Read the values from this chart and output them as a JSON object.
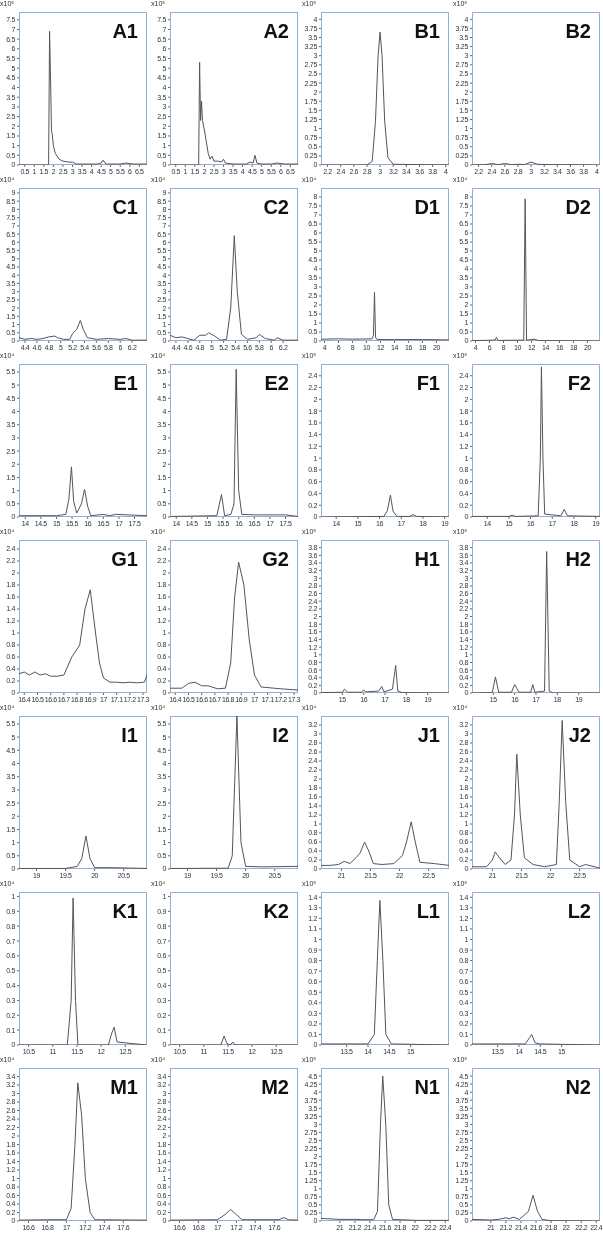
{
  "chart_data": [
    {
      "type": "line",
      "title": "A1",
      "ylabel": "x10⁵",
      "color": "#555555",
      "xlim": [
        0.2,
        6.9
      ],
      "xticks": [
        0.5,
        1,
        1.5,
        2,
        2.5,
        3,
        3.5,
        4,
        4.5,
        5,
        5.5,
        6,
        6.5
      ],
      "ylim": [
        0,
        7.9
      ],
      "yticks": [
        0,
        0.5,
        1,
        1.5,
        2,
        2.5,
        3,
        3.5,
        4,
        4.5,
        5,
        5.5,
        6,
        6.5,
        7,
        7.5
      ],
      "x": [
        0.2,
        1.7,
        1.75,
        1.8,
        1.85,
        1.9,
        1.95,
        2.0,
        2.1,
        2.3,
        2.5,
        2.8,
        3.0,
        3.2,
        3.5,
        4.0,
        4.3,
        4.5,
        4.6,
        4.75,
        5.0,
        5.5,
        5.8,
        6.2,
        6.9
      ],
      "values": [
        0,
        0,
        0.05,
        6.9,
        4.5,
        1.8,
        1.5,
        1.0,
        0.6,
        0.3,
        0.2,
        0.15,
        0.15,
        0.05,
        0.05,
        0.05,
        0.05,
        0.1,
        0.25,
        0.05,
        0.05,
        0.05,
        0.1,
        0.05,
        0.05
      ]
    },
    {
      "type": "line",
      "title": "A2",
      "ylabel": "x10⁵",
      "color": "#555555",
      "xlim": [
        0.2,
        6.9
      ],
      "xticks": [
        0.5,
        1,
        1.5,
        2,
        2.5,
        3,
        3.5,
        4,
        4.5,
        5,
        5.5,
        6,
        6.5
      ],
      "ylim": [
        0,
        7.9
      ],
      "yticks": [
        0,
        0.5,
        1,
        1.5,
        2,
        2.5,
        3,
        3.5,
        4,
        4.5,
        5,
        5.5,
        6,
        6.5,
        7,
        7.5
      ],
      "x": [
        0.2,
        1.7,
        1.75,
        1.8,
        1.85,
        1.9,
        2.0,
        2.1,
        2.2,
        2.3,
        2.4,
        2.5,
        2.7,
        2.9,
        3.0,
        3.1,
        3.5,
        4.2,
        4.4,
        4.55,
        4.65,
        4.75,
        5.0,
        5.5,
        5.8,
        6.2,
        6.9
      ],
      "values": [
        0,
        0,
        5.3,
        2.3,
        3.3,
        2.3,
        1.8,
        1.2,
        0.6,
        0.3,
        0.45,
        0.2,
        0.2,
        0.15,
        0.3,
        0.1,
        0.05,
        0.05,
        0.15,
        0.1,
        0.5,
        0.1,
        0.05,
        0.05,
        0.1,
        0.05,
        0.05
      ]
    },
    {
      "type": "line",
      "title": "B1",
      "ylabel": "x10⁵",
      "color": "#555555",
      "xlim": [
        2.1,
        4.05
      ],
      "xticks": [
        2.2,
        2.4,
        2.6,
        2.8,
        3,
        3.2,
        3.4,
        3.6,
        3.8,
        4
      ],
      "ylim": [
        0,
        4.2
      ],
      "yticks": [
        0,
        0.25,
        0.5,
        0.75,
        1,
        1.25,
        1.5,
        1.75,
        2,
        2.25,
        2.5,
        2.75,
        3,
        3.25,
        3.5,
        3.75,
        4
      ],
      "x": [
        2.1,
        2.8,
        2.88,
        2.93,
        2.97,
        3.0,
        3.03,
        3.07,
        3.12,
        3.2,
        4.05
      ],
      "values": [
        0,
        0,
        0.1,
        1.2,
        3.0,
        3.65,
        3.0,
        1.2,
        0.2,
        0.02,
        0
      ]
    },
    {
      "type": "line",
      "title": "B2",
      "ylabel": "x10⁵",
      "color": "#555555",
      "xlim": [
        2.1,
        4.05
      ],
      "xticks": [
        2.2,
        2.4,
        2.6,
        2.8,
        3,
        3.2,
        3.4,
        3.6,
        3.8,
        4
      ],
      "ylim": [
        0,
        4.2
      ],
      "yticks": [
        0,
        0.25,
        0.5,
        0.75,
        1,
        1.25,
        1.5,
        1.75,
        2,
        2.25,
        2.5,
        2.75,
        3,
        3.25,
        3.5,
        3.75,
        4
      ],
      "x": [
        2.1,
        2.3,
        2.4,
        2.5,
        2.6,
        2.7,
        2.8,
        2.9,
        3.0,
        3.1,
        3.3,
        4.05
      ],
      "values": [
        0,
        0.01,
        0.04,
        0.01,
        0.04,
        0.01,
        0.02,
        0.01,
        0.08,
        0.02,
        0.01,
        0
      ]
    },
    {
      "type": "line",
      "title": "C1",
      "ylabel": "x10⁴",
      "color": "#555555",
      "xlim": [
        4.3,
        6.45
      ],
      "xticks": [
        4.4,
        4.6,
        4.8,
        5,
        5.2,
        5.4,
        5.6,
        5.8,
        6,
        6.2
      ],
      "ylim": [
        0,
        9.3
      ],
      "yticks": [
        0,
        0.5,
        1,
        1.5,
        2,
        2.5,
        3,
        3.5,
        4,
        4.5,
        5,
        5.5,
        6,
        6.5,
        7,
        7.5,
        8,
        8.5,
        9
      ],
      "x": [
        4.3,
        4.4,
        4.5,
        4.6,
        4.7,
        4.8,
        4.9,
        4.95,
        5.05,
        5.15,
        5.2,
        5.27,
        5.33,
        5.38,
        5.45,
        5.6,
        5.8,
        6.0,
        6.1,
        6.2,
        6.45
      ],
      "values": [
        0.2,
        0.1,
        0.15,
        0.1,
        0.15,
        0.25,
        0.3,
        0.2,
        0.1,
        0.1,
        0.45,
        0.7,
        1.25,
        0.7,
        0.2,
        0.1,
        0.15,
        0.1,
        0.15,
        0.05,
        0.05
      ]
    },
    {
      "type": "line",
      "title": "C2",
      "ylabel": "x10⁴",
      "color": "#555555",
      "xlim": [
        4.3,
        6.45
      ],
      "xticks": [
        4.4,
        4.6,
        4.8,
        5,
        5.2,
        5.4,
        5.6,
        5.8,
        6,
        6.2
      ],
      "ylim": [
        0,
        9.3
      ],
      "yticks": [
        0,
        0.5,
        1,
        1.5,
        2,
        2.5,
        3,
        3.5,
        4,
        4.5,
        5,
        5.5,
        6,
        6.5,
        7,
        7.5,
        8,
        8.5,
        9
      ],
      "x": [
        4.3,
        4.4,
        4.5,
        4.6,
        4.7,
        4.8,
        4.9,
        4.95,
        5.05,
        5.15,
        5.25,
        5.32,
        5.38,
        5.43,
        5.5,
        5.6,
        5.75,
        5.8,
        5.9,
        6.05,
        6.1,
        6.2,
        6.45
      ],
      "values": [
        0.35,
        0.2,
        0.25,
        0.15,
        0.05,
        0.35,
        0.35,
        0.5,
        0.3,
        0.05,
        0.1,
        2.0,
        6.4,
        3.0,
        0.4,
        0.1,
        0.2,
        0.4,
        0.15,
        0.05,
        0.2,
        0.05,
        0.05
      ]
    },
    {
      "type": "line",
      "title": "D1",
      "ylabel": "x10⁴",
      "color": "#555555",
      "xlim": [
        3.5,
        21.8
      ],
      "xticks": [
        4,
        6,
        8,
        10,
        12,
        14,
        16,
        18,
        20
      ],
      "ylim": [
        0,
        8.5
      ],
      "yticks": [
        0,
        0.5,
        1,
        1.5,
        2,
        2.5,
        3,
        3.5,
        4,
        4.5,
        5,
        5.5,
        6,
        6.5,
        7,
        7.5,
        8
      ],
      "x": [
        3.5,
        6,
        8,
        10.8,
        11.0,
        11.15,
        11.3,
        11.5,
        14,
        18,
        21.8
      ],
      "values": [
        0.1,
        0.12,
        0.1,
        0.12,
        0.3,
        2.7,
        0.2,
        0.08,
        0.08,
        0.08,
        0.06
      ]
    },
    {
      "type": "line",
      "title": "D2",
      "ylabel": "x10⁴",
      "color": "#555555",
      "xlim": [
        3.5,
        21.8
      ],
      "xticks": [
        4,
        6,
        8,
        10,
        12,
        14,
        16,
        18,
        20
      ],
      "ylim": [
        0,
        8.5
      ],
      "yticks": [
        0,
        0.5,
        1,
        1.5,
        2,
        2.5,
        3,
        3.5,
        4,
        4.5,
        5,
        5.5,
        6,
        6.5,
        7,
        7.5,
        8
      ],
      "x": [
        3.5,
        6.8,
        7.0,
        7.2,
        10.9,
        11.1,
        11.3,
        12.5,
        13,
        21.8
      ],
      "values": [
        0.02,
        0.05,
        0.2,
        0.03,
        0.05,
        7.9,
        0.05,
        0.1,
        0.02,
        0
      ]
    },
    {
      "type": "line",
      "title": "E1",
      "ylabel": "x10⁴",
      "color": "#555555",
      "xlim": [
        13.8,
        17.9
      ],
      "xticks": [
        14,
        14.5,
        15,
        15.5,
        16,
        16.5,
        17,
        17.5
      ],
      "ylim": [
        0,
        5.8
      ],
      "yticks": [
        0,
        0.5,
        1,
        1.5,
        2,
        2.5,
        3,
        3.5,
        4,
        4.5,
        5,
        5.5
      ],
      "x": [
        13.8,
        15.0,
        15.3,
        15.4,
        15.48,
        15.55,
        15.65,
        15.8,
        15.9,
        16.0,
        16.1,
        16.5,
        16.7,
        16.9,
        17.9
      ],
      "values": [
        0.05,
        0.05,
        0.1,
        0.7,
        1.9,
        0.6,
        0.15,
        0.5,
        1.05,
        0.4,
        0.05,
        0.1,
        0.05,
        0.1,
        0.05
      ]
    },
    {
      "type": "line",
      "title": "E2",
      "ylabel": "x10⁴",
      "color": "#555555",
      "xlim": [
        13.8,
        17.9
      ],
      "xticks": [
        14,
        14.5,
        15,
        15.5,
        16,
        16.5,
        17,
        17.5
      ],
      "ylim": [
        0,
        5.8
      ],
      "yticks": [
        0,
        0.5,
        1,
        1.5,
        2,
        2.5,
        3,
        3.5,
        4,
        4.5,
        5,
        5.5
      ],
      "x": [
        13.8,
        15.3,
        15.45,
        15.55,
        15.75,
        15.85,
        15.92,
        16.0,
        16.1,
        16.5,
        17.5,
        17.9
      ],
      "values": [
        0.02,
        0.05,
        0.85,
        0.05,
        0.1,
        0.5,
        5.6,
        1.0,
        0.1,
        0.08,
        0.08,
        0.02
      ]
    },
    {
      "type": "line",
      "title": "F1",
      "ylabel": "x10⁵",
      "color": "#555555",
      "xlim": [
        13.3,
        19.2
      ],
      "xticks": [
        14,
        15,
        16,
        17,
        18,
        19
      ],
      "ylim": [
        0,
        2.6
      ],
      "yticks": [
        0,
        0.2,
        0.4,
        0.6,
        0.8,
        1,
        1.2,
        1.4,
        1.6,
        1.8,
        2,
        2.2,
        2.4
      ],
      "x": [
        13.3,
        16.2,
        16.35,
        16.5,
        16.62,
        16.8,
        17.4,
        17.55,
        17.7,
        19.2
      ],
      "values": [
        0,
        0.01,
        0.1,
        0.37,
        0.1,
        0.01,
        0.01,
        0.04,
        0.01,
        0
      ]
    },
    {
      "type": "line",
      "title": "F2",
      "ylabel": "x10⁵",
      "color": "#555555",
      "xlim": [
        13.3,
        19.2
      ],
      "xticks": [
        14,
        15,
        16,
        17,
        18,
        19
      ],
      "ylim": [
        0,
        2.6
      ],
      "yticks": [
        0,
        0.2,
        0.4,
        0.6,
        0.8,
        1,
        1.2,
        1.4,
        1.6,
        1.8,
        2,
        2.2,
        2.4
      ],
      "x": [
        13.3,
        15.0,
        15.15,
        15.3,
        16.35,
        16.45,
        16.5,
        16.57,
        16.65,
        17.4,
        17.55,
        17.7,
        19.2
      ],
      "values": [
        0.01,
        0.01,
        0.03,
        0.01,
        0.02,
        1.0,
        2.55,
        1.0,
        0.05,
        0.02,
        0.13,
        0.02,
        0.01
      ]
    },
    {
      "type": "line",
      "title": "G1",
      "ylabel": "x10⁴",
      "color": "#555555",
      "xlim": [
        16.36,
        17.33
      ],
      "xticks": [
        16.4,
        16.5,
        16.6,
        16.7,
        16.8,
        16.9,
        17,
        17.1,
        17.2,
        17.3
      ],
      "ylim": [
        0,
        2.55
      ],
      "yticks": [
        0,
        0.2,
        0.4,
        0.6,
        0.8,
        1,
        1.2,
        1.4,
        1.6,
        1.8,
        2,
        2.2,
        2.4
      ],
      "x": [
        16.36,
        16.4,
        16.44,
        16.48,
        16.52,
        16.56,
        16.6,
        16.65,
        16.7,
        16.76,
        16.82,
        16.86,
        16.9,
        16.94,
        16.97,
        17.0,
        17.05,
        17.1,
        17.15,
        17.2,
        17.25,
        17.31,
        17.33
      ],
      "values": [
        0.32,
        0.35,
        0.3,
        0.35,
        0.3,
        0.32,
        0.28,
        0.28,
        0.3,
        0.6,
        0.8,
        1.4,
        1.72,
        1.0,
        0.5,
        0.25,
        0.18,
        0.18,
        0.17,
        0.18,
        0.17,
        0.18,
        0.3
      ]
    },
    {
      "type": "line",
      "title": "G2",
      "ylabel": "x10⁴",
      "color": "#555555",
      "xlim": [
        16.36,
        17.33
      ],
      "xticks": [
        16.4,
        16.5,
        16.6,
        16.7,
        16.8,
        16.9,
        17,
        17.1,
        17.2,
        17.3
      ],
      "ylim": [
        0,
        2.55
      ],
      "yticks": [
        0,
        0.2,
        0.4,
        0.6,
        0.8,
        1,
        1.2,
        1.4,
        1.6,
        1.8,
        2,
        2.2,
        2.4
      ],
      "x": [
        16.36,
        16.45,
        16.5,
        16.55,
        16.6,
        16.65,
        16.72,
        16.78,
        16.82,
        16.85,
        16.88,
        16.92,
        16.96,
        17.0,
        17.05,
        17.2,
        17.33
      ],
      "values": [
        0.08,
        0.08,
        0.16,
        0.18,
        0.12,
        0.12,
        0.07,
        0.08,
        0.5,
        1.6,
        2.18,
        1.8,
        0.9,
        0.3,
        0.1,
        0.07,
        0.05
      ]
    },
    {
      "type": "line",
      "title": "H1",
      "ylabel": "x10⁵",
      "color": "#555555",
      "xlim": [
        14,
        20
      ],
      "xticks": [
        15,
        16,
        17,
        18,
        19
      ],
      "ylim": [
        0,
        4.0
      ],
      "yticks": [
        0,
        0.2,
        0.4,
        0.6,
        0.8,
        1,
        1.2,
        1.4,
        1.6,
        1.8,
        2,
        2.2,
        2.4,
        2.6,
        2.8,
        3,
        3.2,
        3.4,
        3.6,
        3.8
      ],
      "x": [
        14,
        15.0,
        15.1,
        15.25,
        15.9,
        16.0,
        16.1,
        16.7,
        16.85,
        16.95,
        17.35,
        17.5,
        17.6,
        17.8,
        20
      ],
      "values": [
        0.01,
        0.02,
        0.1,
        0.02,
        0.02,
        0.08,
        0.03,
        0.05,
        0.17,
        0.03,
        0.1,
        0.72,
        0.05,
        0.01,
        0
      ]
    },
    {
      "type": "line",
      "title": "H2",
      "ylabel": "x10⁵",
      "color": "#555555",
      "xlim": [
        14,
        20
      ],
      "xticks": [
        15,
        16,
        17,
        18,
        19
      ],
      "ylim": [
        0,
        4.0
      ],
      "yticks": [
        0,
        0.2,
        0.4,
        0.6,
        0.8,
        1,
        1.2,
        1.4,
        1.6,
        1.8,
        2,
        2.2,
        2.4,
        2.6,
        2.8,
        3,
        3.2,
        3.4,
        3.6,
        3.8
      ],
      "x": [
        14,
        14.95,
        15.1,
        15.25,
        15.85,
        16.0,
        16.1,
        16.2,
        16.75,
        16.85,
        16.95,
        17.4,
        17.5,
        17.62,
        17.8,
        20
      ],
      "values": [
        0,
        0.01,
        0.42,
        0.02,
        0.02,
        0.22,
        0.12,
        0.02,
        0.02,
        0.22,
        0.02,
        0.05,
        3.7,
        0.05,
        0,
        0
      ]
    },
    {
      "type": "line",
      "title": "I1",
      "ylabel": "x10⁴",
      "color": "#555555",
      "xlim": [
        18.7,
        20.9
      ],
      "xticks": [
        19,
        19.5,
        20,
        20.5
      ],
      "ylim": [
        0,
        5.8
      ],
      "yticks": [
        0,
        0.5,
        1,
        1.5,
        2,
        2.5,
        3,
        3.5,
        4,
        4.5,
        5,
        5.5
      ],
      "x": [
        18.7,
        19.5,
        19.7,
        19.78,
        19.85,
        19.92,
        20.0,
        20.3,
        20.9
      ],
      "values": [
        0.02,
        0.02,
        0.1,
        0.4,
        1.25,
        0.4,
        0.05,
        0.05,
        0.02
      ]
    },
    {
      "type": "line",
      "title": "I2",
      "ylabel": "x10⁴",
      "color": "#555555",
      "xlim": [
        18.7,
        20.9
      ],
      "xticks": [
        19,
        19.5,
        20,
        20.5
      ],
      "ylim": [
        0,
        5.8
      ],
      "yticks": [
        0,
        0.5,
        1,
        1.5,
        2,
        2.5,
        3,
        3.5,
        4,
        4.5,
        5,
        5.5
      ],
      "x": [
        18.7,
        19.7,
        19.77,
        19.85,
        19.92,
        20.0,
        20.3,
        20.9
      ],
      "values": [
        0.02,
        0.03,
        0.5,
        5.8,
        1.0,
        0.1,
        0.08,
        0.1
      ]
    },
    {
      "type": "line",
      "title": "J1",
      "ylabel": "x10⁴",
      "color": "#555555",
      "xlim": [
        20.65,
        22.85
      ],
      "xticks": [
        21,
        21.5,
        22,
        22.5
      ],
      "ylim": [
        0,
        3.4
      ],
      "yticks": [
        0,
        0.2,
        0.4,
        0.6,
        0.8,
        1,
        1.2,
        1.4,
        1.6,
        1.8,
        2,
        2.2,
        2.4,
        2.6,
        2.8,
        3,
        3.2
      ],
      "x": [
        20.65,
        20.8,
        20.95,
        21.05,
        21.15,
        21.25,
        21.32,
        21.4,
        21.47,
        21.55,
        21.7,
        21.9,
        22.05,
        22.12,
        22.2,
        22.27,
        22.35,
        22.6,
        22.85
      ],
      "values": [
        0.08,
        0.08,
        0.1,
        0.17,
        0.12,
        0.25,
        0.35,
        0.6,
        0.4,
        0.12,
        0.1,
        0.12,
        0.3,
        0.6,
        1.05,
        0.6,
        0.15,
        0.12,
        0.08
      ]
    },
    {
      "type": "line",
      "title": "J2",
      "ylabel": "x10⁴",
      "color": "#555555",
      "xlim": [
        20.65,
        22.85
      ],
      "xticks": [
        21,
        21.5,
        22,
        22.5
      ],
      "ylim": [
        0,
        3.4
      ],
      "yticks": [
        0,
        0.2,
        0.4,
        0.6,
        0.8,
        1,
        1.2,
        1.4,
        1.6,
        1.8,
        2,
        2.2,
        2.4,
        2.6,
        2.8,
        3,
        3.2
      ],
      "x": [
        20.65,
        20.9,
        21.0,
        21.05,
        21.12,
        21.22,
        21.32,
        21.38,
        21.42,
        21.48,
        21.55,
        21.7,
        21.9,
        22.1,
        22.15,
        22.2,
        22.26,
        22.33,
        22.5,
        22.6,
        22.85
      ],
      "values": [
        0.05,
        0.05,
        0.2,
        0.38,
        0.25,
        0.1,
        0.2,
        1.2,
        2.55,
        1.2,
        0.25,
        0.1,
        0.05,
        0.1,
        1.5,
        3.3,
        1.5,
        0.2,
        0.05,
        0.1,
        0.02
      ]
    },
    {
      "type": "line",
      "title": "K1",
      "ylabel": "x10⁴",
      "color": "#555555",
      "xlim": [
        10.3,
        12.95
      ],
      "xticks": [
        10.5,
        11,
        11.5,
        12,
        12.5
      ],
      "ylim": [
        0,
        1.03
      ],
      "yticks": [
        0,
        0.1,
        0.2,
        0.3,
        0.4,
        0.5,
        0.6,
        0.7,
        0.8,
        0.9,
        1
      ],
      "x": [
        10.3,
        11.3,
        11.38,
        11.42,
        11.47,
        11.52,
        12.15,
        12.22,
        12.27,
        12.33,
        12.95
      ],
      "values": [
        0,
        0,
        0.3,
        0.99,
        0.3,
        0,
        0,
        0.08,
        0.12,
        0.02,
        0
      ]
    },
    {
      "type": "line",
      "title": "K2",
      "ylabel": "x10⁴",
      "color": "#555555",
      "xlim": [
        10.3,
        12.95
      ],
      "xticks": [
        10.5,
        11,
        11.5,
        12,
        12.5
      ],
      "ylim": [
        0,
        1.03
      ],
      "yticks": [
        0,
        0.1,
        0.2,
        0.3,
        0.4,
        0.5,
        0.6,
        0.7,
        0.8,
        0.9,
        1
      ],
      "x": [
        10.3,
        11.35,
        11.42,
        11.48,
        11.55,
        11.6,
        11.65,
        12.95
      ],
      "values": [
        0,
        0,
        0.06,
        0.01,
        0,
        0.02,
        0,
        0
      ]
    },
    {
      "type": "line",
      "title": "L1",
      "ylabel": "x10⁵",
      "color": "#555555",
      "xlim": [
        12.9,
        15.9
      ],
      "xticks": [
        13.5,
        14,
        14.5,
        15
      ],
      "ylim": [
        0,
        1.45
      ],
      "yticks": [
        0,
        0.1,
        0.2,
        0.3,
        0.4,
        0.5,
        0.6,
        0.7,
        0.8,
        0.9,
        1,
        1.1,
        1.2,
        1.3,
        1.4
      ],
      "x": [
        12.9,
        14.0,
        14.15,
        14.22,
        14.28,
        14.35,
        14.42,
        14.55,
        15.9
      ],
      "values": [
        0.01,
        0.01,
        0.1,
        0.8,
        1.37,
        0.8,
        0.1,
        0.01,
        0
      ]
    },
    {
      "type": "line",
      "title": "L2",
      "ylabel": "x10⁵",
      "color": "#555555",
      "xlim": [
        12.9,
        15.9
      ],
      "xticks": [
        13.5,
        14,
        14.5,
        15
      ],
      "ylim": [
        0,
        1.45
      ],
      "yticks": [
        0,
        0.1,
        0.2,
        0.3,
        0.4,
        0.5,
        0.6,
        0.7,
        0.8,
        0.9,
        1,
        1.1,
        1.2,
        1.3,
        1.4
      ],
      "x": [
        12.9,
        14.15,
        14.25,
        14.3,
        14.38,
        14.5,
        15.9
      ],
      "values": [
        0.01,
        0.01,
        0.07,
        0.1,
        0.02,
        0.01,
        0
      ]
    },
    {
      "type": "line",
      "title": "M1",
      "ylabel": "x10⁴",
      "color": "#555555",
      "xlim": [
        16.5,
        17.85
      ],
      "xticks": [
        16.6,
        16.8,
        17,
        17.2,
        17.4,
        17.6
      ],
      "ylim": [
        0,
        3.6
      ],
      "yticks": [
        0,
        0.2,
        0.4,
        0.6,
        0.8,
        1,
        1.2,
        1.4,
        1.6,
        1.8,
        2,
        2.2,
        2.4,
        2.6,
        2.8,
        3,
        3.2,
        3.4
      ],
      "x": [
        16.5,
        16.8,
        17.0,
        17.05,
        17.09,
        17.12,
        17.16,
        17.2,
        17.25,
        17.3,
        17.85
      ],
      "values": [
        0.02,
        0.03,
        0.03,
        0.3,
        1.8,
        3.25,
        2.5,
        1.0,
        0.2,
        0.03,
        0.02
      ]
    },
    {
      "type": "line",
      "title": "M2",
      "ylabel": "x10⁴",
      "color": "#555555",
      "xlim": [
        16.5,
        17.85
      ],
      "xticks": [
        16.6,
        16.8,
        17,
        17.2,
        17.4,
        17.6
      ],
      "ylim": [
        0,
        3.6
      ],
      "yticks": [
        0,
        0.2,
        0.4,
        0.6,
        0.8,
        1,
        1.2,
        1.4,
        1.6,
        1.8,
        2,
        2.2,
        2.4,
        2.6,
        2.8,
        3,
        3.2,
        3.4
      ],
      "x": [
        16.5,
        17.0,
        17.08,
        17.14,
        17.2,
        17.26,
        17.65,
        17.7,
        17.75,
        17.85
      ],
      "values": [
        0.02,
        0.03,
        0.15,
        0.27,
        0.15,
        0.03,
        0.03,
        0.08,
        0.03,
        0.02
      ]
    },
    {
      "type": "line",
      "title": "N1",
      "ylabel": "x10⁵",
      "color": "#555555",
      "xlim": [
        20.75,
        22.45
      ],
      "xticks": [
        21,
        21.2,
        21.4,
        21.6,
        21.8,
        22,
        22.2,
        22.4
      ],
      "ylim": [
        0,
        4.75
      ],
      "yticks": [
        0,
        0.25,
        0.5,
        0.75,
        1,
        1.25,
        1.5,
        1.75,
        2,
        2.25,
        2.5,
        2.75,
        3,
        3.25,
        3.5,
        3.75,
        4,
        4.25,
        4.5
      ],
      "x": [
        20.75,
        21.0,
        21.2,
        21.3,
        21.45,
        21.5,
        21.54,
        21.57,
        21.61,
        21.65,
        21.7,
        22.0,
        22.45
      ],
      "values": [
        0.08,
        0.05,
        0.05,
        0.04,
        0.04,
        0.3,
        3.0,
        4.5,
        3.0,
        0.5,
        0.05,
        0.02,
        0.02
      ]
    },
    {
      "type": "line",
      "title": "N2",
      "ylabel": "x10⁵",
      "color": "#555555",
      "xlim": [
        20.75,
        22.45
      ],
      "xticks": [
        21,
        21.2,
        21.4,
        21.6,
        21.8,
        22,
        22.2,
        22.4
      ],
      "ylim": [
        0,
        4.75
      ],
      "yticks": [
        0,
        0.25,
        0.5,
        0.75,
        1,
        1.25,
        1.5,
        1.75,
        2,
        2.25,
        2.5,
        2.75,
        3,
        3.25,
        3.5,
        3.75,
        4,
        4.25,
        4.5
      ],
      "x": [
        20.75,
        21.0,
        21.1,
        21.2,
        21.25,
        21.3,
        21.38,
        21.5,
        21.56,
        21.62,
        21.68,
        21.8,
        22.45
      ],
      "values": [
        0.05,
        0.03,
        0.05,
        0.1,
        0.07,
        0.12,
        0.05,
        0.3,
        0.8,
        0.3,
        0.05,
        0.01,
        0
      ]
    }
  ]
}
